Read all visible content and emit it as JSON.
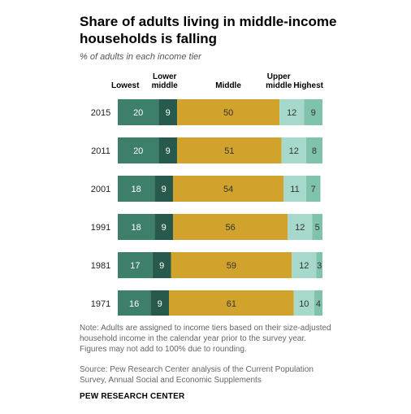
{
  "title": "Share of adults living in middle-income households is falling",
  "subtitle": "% of adults in each income tier",
  "note": "Note: Adults are assigned to income tiers based on their size-adjusted household income in the calendar year prior to the survey year. Figures may not add to 100% due to rounding.",
  "source": "Source: Pew Research Center analysis of the Current Population Survey, Annual Social and Economic Supplements",
  "brand": "PEW RESEARCH CENTER",
  "colors": {
    "lowest": "#3d7f6a",
    "lower_middle": "#27594c",
    "middle": "#d1a32c",
    "upper_middle": "#a6d9cc",
    "highest": "#7fc3ad"
  },
  "chart_data": {
    "type": "bar",
    "orientation": "horizontal",
    "stacked": true,
    "categories": [
      "2015",
      "2011",
      "2001",
      "1991",
      "1981",
      "1971"
    ],
    "series": [
      {
        "name": "Lowest",
        "values": [
          20,
          20,
          18,
          18,
          17,
          16
        ]
      },
      {
        "name": "Lower middle",
        "values": [
          9,
          9,
          9,
          9,
          9,
          9
        ]
      },
      {
        "name": "Middle",
        "values": [
          50,
          51,
          54,
          56,
          59,
          61
        ]
      },
      {
        "name": "Upper middle",
        "values": [
          12,
          12,
          11,
          12,
          12,
          10
        ]
      },
      {
        "name": "Highest",
        "values": [
          9,
          8,
          7,
          5,
          3,
          4
        ]
      }
    ],
    "legend_position": "top",
    "grid": false
  }
}
